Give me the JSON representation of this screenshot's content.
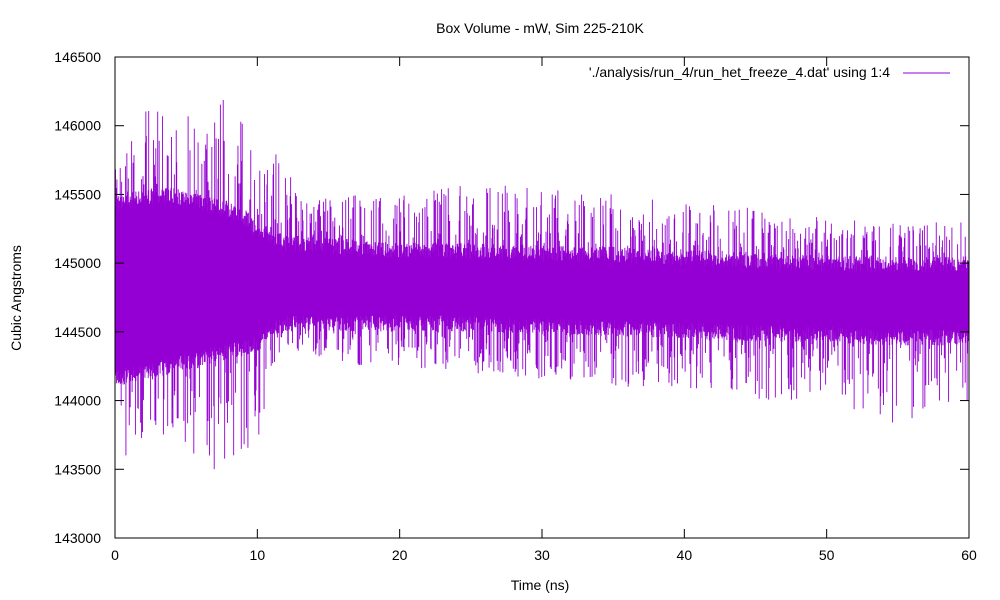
{
  "chart_data": {
    "type": "line",
    "title": "Box Volume - mW, Sim 225-210K",
    "xlabel": "Time (ns)",
    "ylabel": "Cubic Angstroms",
    "xlim": [
      0,
      60
    ],
    "ylim": [
      143000,
      146500
    ],
    "x_ticks": [
      0,
      10,
      20,
      30,
      40,
      50,
      60
    ],
    "x_tick_labels": [
      "0",
      "10",
      "20",
      "30",
      "40",
      "50",
      "60"
    ],
    "y_ticks": [
      143000,
      143500,
      144000,
      144500,
      145000,
      145500,
      146000,
      146500
    ],
    "y_tick_labels": [
      "143000",
      "143500",
      "144000",
      "144500",
      "145000",
      "145500",
      "146000",
      "146500"
    ],
    "grid": false,
    "legend_position": "top-right",
    "series": [
      {
        "name": "'./analysis/run_4/run_het_freeze_4.dat' using 1:4",
        "color": "#9400d3",
        "envelope": {
          "x": [
            0,
            2,
            4,
            6,
            8,
            10,
            11,
            12,
            14,
            16,
            20,
            25,
            30,
            35,
            40,
            45,
            50,
            55,
            60
          ],
          "min": [
            143480,
            143700,
            143750,
            143500,
            143450,
            143700,
            144200,
            144400,
            144300,
            144250,
            144250,
            144200,
            144150,
            144100,
            144100,
            144000,
            144000,
            143800,
            144000
          ],
          "max": [
            145700,
            146100,
            146200,
            146000,
            146300,
            145800,
            145900,
            145700,
            145500,
            145500,
            145500,
            145600,
            145550,
            145500,
            145450,
            145400,
            145350,
            145300,
            145300
          ],
          "band_low": [
            144100,
            144150,
            144200,
            144250,
            144300,
            144350,
            144450,
            144500,
            144500,
            144500,
            144500,
            144500,
            144480,
            144470,
            144450,
            144430,
            144420,
            144400,
            144400
          ],
          "band_high": [
            145500,
            145550,
            145550,
            145500,
            145450,
            145300,
            145250,
            145200,
            145200,
            145180,
            145150,
            145150,
            145130,
            145120,
            145100,
            145080,
            145060,
            145050,
            145050
          ]
        }
      }
    ]
  }
}
